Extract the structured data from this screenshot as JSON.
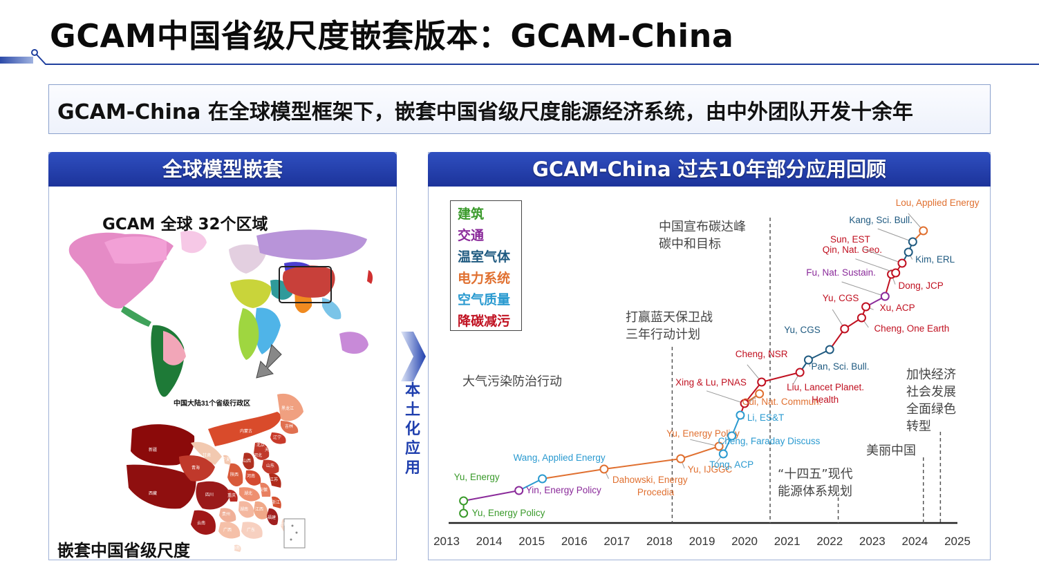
{
  "slide": {
    "title": "GCAM中国省级尺度嵌套版本：GCAM-China",
    "banner": "GCAM-China 在全球模型框架下，嵌套中国省级尺度能源经济系统，由中外团队开发十余年",
    "left_panel": {
      "header": "全球模型嵌套",
      "region_label": "GCAM 全球 32个区域",
      "china_map_title": "中国大陆31个省级行政区",
      "china_label": "嵌套中国省级尺度",
      "province_labels": [
        "新疆",
        "西藏",
        "青海",
        "甘肃",
        "内蒙古",
        "黑龙江",
        "吉林",
        "辽宁",
        "北京",
        "天津",
        "河北",
        "山西",
        "陕西",
        "宁夏",
        "四川",
        "重庆",
        "河南",
        "山东",
        "湖北",
        "安徽",
        "江苏",
        "浙江",
        "湖南",
        "江西",
        "福建",
        "贵州",
        "云南",
        "广西",
        "广东",
        "海南",
        "台湾"
      ]
    },
    "localize_label": "本土化应用",
    "right_panel": {
      "header": "GCAM-China 过去10年部分应用回顾",
      "legend": [
        {
          "label": "建筑",
          "color": "#3a9a2b"
        },
        {
          "label": "交通",
          "color": "#8a2a9a"
        },
        {
          "label": "温室气体",
          "color": "#1f5a80"
        },
        {
          "label": "电力系统",
          "color": "#e07030"
        },
        {
          "label": "空气质量",
          "color": "#2a9ad0"
        },
        {
          "label": "降碳减污",
          "color": "#c01020"
        }
      ],
      "years": [
        "2013",
        "2014",
        "2015",
        "2016",
        "2017",
        "2018",
        "2019",
        "2020",
        "2021",
        "2022",
        "2023",
        "2024",
        "2025"
      ],
      "policies": [
        {
          "year": 2013.3,
          "lines": [
            "大气污染防治行动"
          ]
        },
        {
          "year": 2018.3,
          "lines": [
            "打赢蓝天保卫战",
            "三年行动计划"
          ]
        },
        {
          "year": 2020.6,
          "lines": [
            "中国宣布碳达峰",
            "碳中和目标"
          ]
        },
        {
          "year": 2022.2,
          "lines": [
            "“十四五”现代",
            "能源体系规划"
          ]
        },
        {
          "year": 2024.2,
          "lines": [
            "美丽中国"
          ]
        },
        {
          "year": 2024.6,
          "lines": [
            "加快经济",
            "社会发展",
            "全面绿色",
            "转型"
          ]
        }
      ],
      "publications": [
        {
          "label": "Yu, Energy Policy",
          "year": 2013.4,
          "sector": "建筑"
        },
        {
          "label": "Yu, Energy",
          "year": 2013.4,
          "sector": "建筑"
        },
        {
          "label": "Yin, Energy Policy",
          "year": 2014.7,
          "sector": "交通"
        },
        {
          "label": "Wang, Applied Energy",
          "year": 2015.25,
          "sector": "空气质量"
        },
        {
          "label": "Dahowski, Energy Procedia",
          "year": 2016.7,
          "sector": "电力系统"
        },
        {
          "label": "Yu, IJGGC",
          "year": 2018.5,
          "sector": "电力系统"
        },
        {
          "label": "Yu, Energy Policy",
          "year": 2019.4,
          "sector": "电力系统"
        },
        {
          "label": "Tong, ACP",
          "year": 2019.5,
          "sector": "空气质量"
        },
        {
          "label": "Cheng, Faraday Discuss",
          "year": 2019.7,
          "sector": "空气质量"
        },
        {
          "label": "Li, ES&T",
          "year": 2019.9,
          "sector": "空气质量"
        },
        {
          "label": "Xing & Lu, PNAS",
          "year": 2020.0,
          "sector": "降碳减污"
        },
        {
          "label": "Cui, Nat. Commun.",
          "year": 2020.35,
          "sector": "电力系统"
        },
        {
          "label": "Cheng, NSR",
          "year": 2020.4,
          "sector": "降碳减污"
        },
        {
          "label": "Liu, Lancet Planet. Health",
          "year": 2021.3,
          "sector": "降碳减污"
        },
        {
          "label": "Pan, Sci. Bull.",
          "year": 2021.5,
          "sector": "温室气体"
        },
        {
          "label": "Yu, CGS",
          "year": 2022.0,
          "sector": "温室气体"
        },
        {
          "label": "Yu, CGS",
          "year": 2022.35,
          "sector": "降碳减污"
        },
        {
          "label": "Cheng, One Earth",
          "year": 2022.75,
          "sector": "降碳减污"
        },
        {
          "label": "Xu, ACP",
          "year": 2022.85,
          "sector": "降碳减污"
        },
        {
          "label": "Fu, Nat. Sustain.",
          "year": 2023.3,
          "sector": "交通"
        },
        {
          "label": "Dong, JCP",
          "year": 2023.45,
          "sector": "降碳减污"
        },
        {
          "label": "Qin, Nat. Geo.",
          "year": 2023.55,
          "sector": "降碳减污"
        },
        {
          "label": "Sun, EST",
          "year": 2023.7,
          "sector": "降碳减污"
        },
        {
          "label": "Kim, ERL",
          "year": 2023.85,
          "sector": "温室气体"
        },
        {
          "label": "Kang, Sci. Bull.",
          "year": 2023.95,
          "sector": "温室气体"
        },
        {
          "label": "Lou, Applied Energy",
          "year": 2024.2,
          "sector": "电力系统"
        }
      ]
    }
  }
}
